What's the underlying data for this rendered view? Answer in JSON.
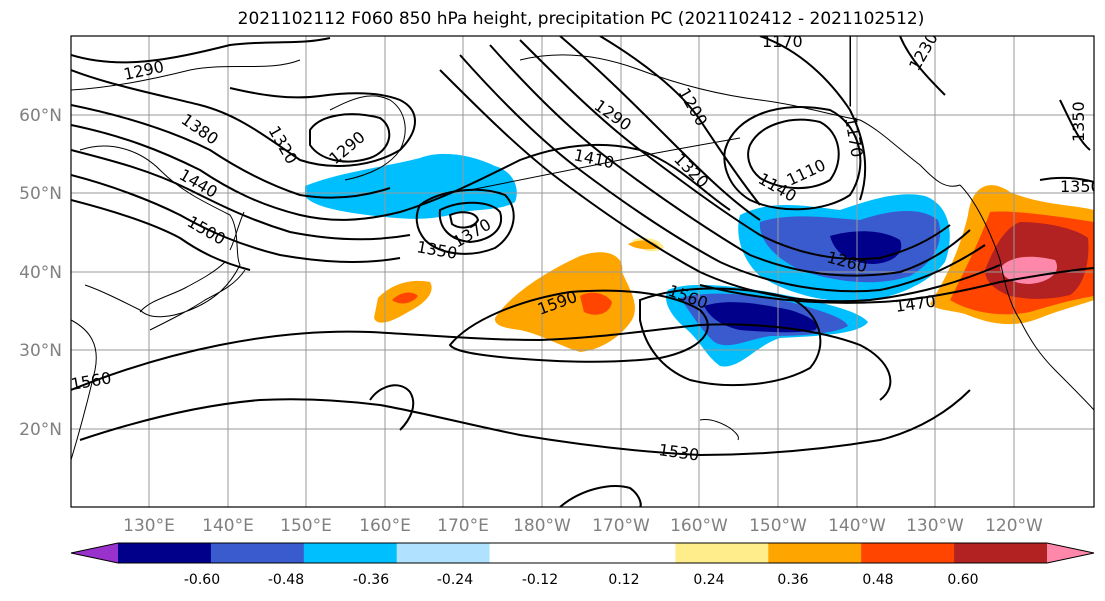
{
  "title": "2021102112 F060 850 hPa height, precipitation PC (2021102412 - 2021102512)",
  "lat_ticks": [
    "60°N",
    "50°N",
    "40°N",
    "30°N",
    "20°N"
  ],
  "lon_ticks": [
    "130°E",
    "140°E",
    "150°E",
    "160°E",
    "170°E",
    "180°W",
    "170°W",
    "160°W",
    "150°W",
    "140°W",
    "130°W",
    "120°W"
  ],
  "contour_labels": [
    "1290",
    "1380",
    "1320",
    "1290",
    "1440",
    "1500",
    "1350",
    "1370",
    "1410",
    "1290",
    "1200",
    "1320",
    "1170",
    "1230",
    "1170",
    "1110",
    "1140",
    "1260",
    "1470",
    "1350",
    "1350",
    "1590",
    "1560",
    "1560",
    "1530"
  ],
  "colorbar": {
    "colors": [
      "#9932cc",
      "#00008b",
      "#3a5bcd",
      "#00bfff",
      "#b0e2ff",
      "#ffffff",
      "#ffffff",
      "#ffec8b",
      "#ffa500",
      "#ff4500",
      "#b22222",
      "#ff88aa"
    ],
    "labels": [
      "-0.60",
      "-0.48",
      "-0.36",
      "-0.24",
      "-0.12",
      "0.12",
      "0.24",
      "0.36",
      "0.48",
      "0.60"
    ]
  },
  "precip_colors": {
    "neg_deep": "#00008b",
    "neg_mid": "#3a5bcd",
    "neg_light": "#00bfff",
    "pos_light": "#ffec8b",
    "pos_mid": "#ffa500",
    "pos_strong": "#ff4500",
    "pos_deep": "#b22222",
    "pos_max": "#ff88aa"
  }
}
